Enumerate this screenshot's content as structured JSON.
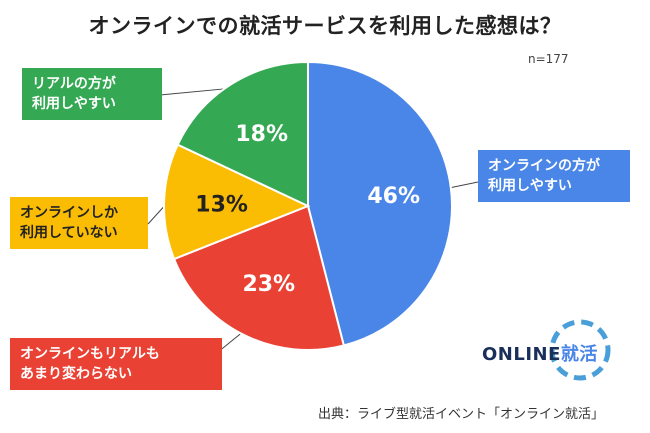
{
  "chart_data": {
    "type": "pie",
    "title": "オンラインでの就活サービスを利用した感想は？",
    "sample_size": "n=177",
    "slices": [
      {
        "label": [
          "オンラインの方が",
          "利用しやすい"
        ],
        "value": 46,
        "value_label": "46%",
        "color": "#4a86e8"
      },
      {
        "label": [
          "オンラインもリアルも",
          "あまり変わらない"
        ],
        "value": 23,
        "value_label": "23%",
        "color": "#e94235"
      },
      {
        "label": [
          "オンラインしか",
          "利用していない"
        ],
        "value": 13,
        "value_label": "13%",
        "color": "#fbbc04"
      },
      {
        "label": [
          "リアルの方が",
          "利用しやすい"
        ],
        "value": 18,
        "value_label": "18%",
        "color": "#34a853"
      }
    ],
    "start_angle_deg": 0,
    "direction": "clockwise"
  },
  "logo": {
    "latin": "ONLINE",
    "kanji": "就活",
    "ring_color": "#4a9fd8"
  },
  "source": "出典：ライブ型就活イベント「オンライン就活」"
}
